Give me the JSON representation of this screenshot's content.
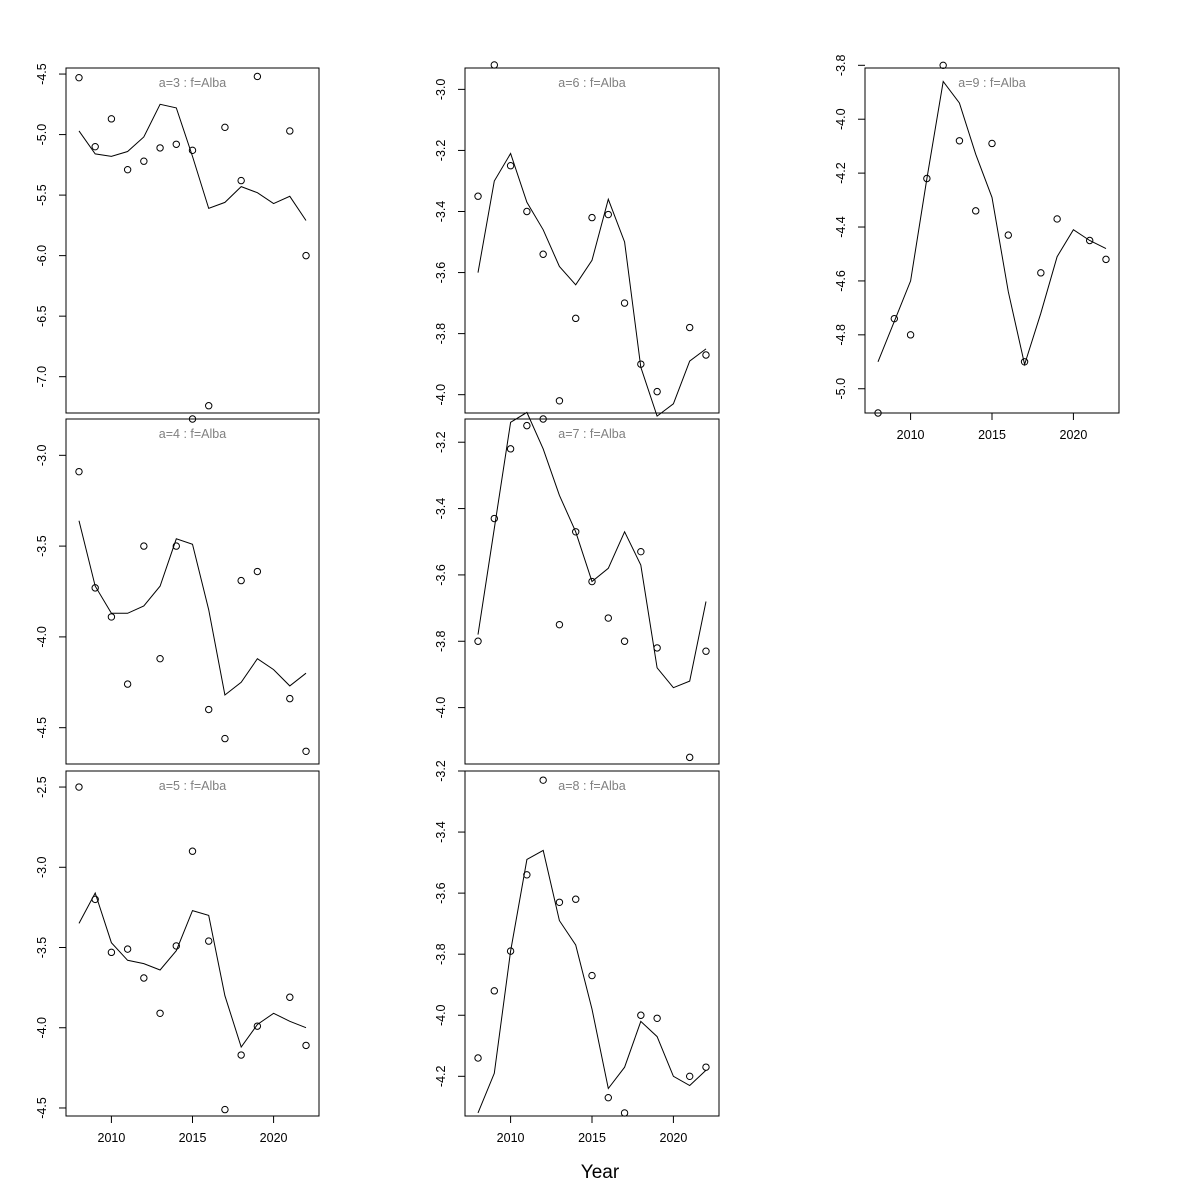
{
  "figure": {
    "xlabel": "Year"
  },
  "chart_data": [
    {
      "type": "scatter+line",
      "title": "a=3  :  f=Alba",
      "x_ticks": [],
      "y_ticks": [
        -4.5,
        -5.0,
        -5.5,
        -6.0,
        -6.5,
        -7.0
      ],
      "xlim": [
        2007.2,
        2022.8
      ],
      "ylim": [
        -7.3,
        -4.45
      ],
      "points": {
        "x": [
          2008,
          2009,
          2010,
          2011,
          2012,
          2013,
          2014,
          2015,
          2016,
          2017,
          2018,
          2019,
          2021,
          2022
        ],
        "y": [
          -4.53,
          -5.1,
          -4.87,
          -5.29,
          -5.22,
          -5.11,
          -5.08,
          -5.13,
          -7.24,
          -4.94,
          -5.38,
          -4.52,
          -4.97,
          -6.0
        ]
      },
      "line": {
        "x": [
          2008,
          2009,
          2010,
          2011,
          2012,
          2013,
          2014,
          2015,
          2016,
          2017,
          2018,
          2019,
          2020,
          2021,
          2022
        ],
        "y": [
          -4.97,
          -5.16,
          -5.18,
          -5.14,
          -5.02,
          -4.75,
          -4.78,
          -5.18,
          -5.61,
          -5.56,
          -5.43,
          -5.48,
          -5.57,
          -5.51,
          -5.71
        ]
      }
    },
    {
      "type": "scatter+line",
      "title": "a=4  :  f=Alba",
      "x_ticks": [],
      "y_ticks": [
        -3.0,
        -3.5,
        -4.0,
        -4.5
      ],
      "xlim": [
        2007.2,
        2022.8
      ],
      "ylim": [
        -4.7,
        -2.8
      ],
      "points": {
        "x": [
          2008,
          2009,
          2010,
          2011,
          2012,
          2013,
          2014,
          2015,
          2016,
          2017,
          2018,
          2019,
          2021,
          2022
        ],
        "y": [
          -3.09,
          -3.73,
          -3.89,
          -4.26,
          -3.5,
          -4.12,
          -3.5,
          -2.8,
          -4.4,
          -4.56,
          -3.69,
          -3.64,
          -4.34,
          -4.63
        ]
      },
      "line": {
        "x": [
          2008,
          2009,
          2010,
          2011,
          2012,
          2013,
          2014,
          2015,
          2016,
          2017,
          2018,
          2019,
          2020,
          2021,
          2022
        ],
        "y": [
          -3.36,
          -3.72,
          -3.87,
          -3.87,
          -3.83,
          -3.72,
          -3.46,
          -3.49,
          -3.85,
          -4.32,
          -4.25,
          -4.12,
          -4.18,
          -4.27,
          -4.2
        ]
      }
    },
    {
      "type": "scatter+line",
      "title": "a=5  :  f=Alba",
      "x_ticks": [
        2010,
        2015,
        2020
      ],
      "y_ticks": [
        -2.5,
        -3.0,
        -3.5,
        -4.0,
        -4.5
      ],
      "xlim": [
        2007.2,
        2022.8
      ],
      "ylim": [
        -4.55,
        -2.4
      ],
      "points": {
        "x": [
          2008,
          2009,
          2010,
          2011,
          2012,
          2013,
          2014,
          2015,
          2016,
          2017,
          2018,
          2019,
          2021,
          2022
        ],
        "y": [
          -2.5,
          -3.2,
          -3.53,
          -3.51,
          -3.69,
          -3.91,
          -3.49,
          -2.9,
          -3.46,
          -4.51,
          -4.17,
          -3.99,
          -3.81,
          -4.11
        ]
      },
      "line": {
        "x": [
          2008,
          2009,
          2010,
          2011,
          2012,
          2013,
          2014,
          2015,
          2016,
          2017,
          2018,
          2019,
          2020,
          2021,
          2022
        ],
        "y": [
          -3.35,
          -3.16,
          -3.47,
          -3.58,
          -3.6,
          -3.64,
          -3.52,
          -3.27,
          -3.3,
          -3.8,
          -4.12,
          -3.98,
          -3.91,
          -3.96,
          -4.0
        ]
      }
    },
    {
      "type": "scatter+line",
      "title": "a=6  :  f=Alba",
      "x_ticks": [],
      "y_ticks": [
        -3.0,
        -3.2,
        -3.4,
        -3.6,
        -3.8,
        -4.0
      ],
      "xlim": [
        2007.2,
        2022.8
      ],
      "ylim": [
        -4.06,
        -2.93
      ],
      "points": {
        "x": [
          2008,
          2009,
          2010,
          2011,
          2012,
          2013,
          2014,
          2015,
          2016,
          2017,
          2018,
          2019,
          2021,
          2022
        ],
        "y": [
          -3.35,
          -2.92,
          -3.25,
          -3.4,
          -3.54,
          -4.02,
          -3.75,
          -3.42,
          -3.41,
          -3.7,
          -3.9,
          -3.99,
          -3.78,
          -3.87
        ]
      },
      "line": {
        "x": [
          2008,
          2009,
          2010,
          2011,
          2012,
          2013,
          2014,
          2015,
          2016,
          2017,
          2018,
          2019,
          2020,
          2021,
          2022
        ],
        "y": [
          -3.6,
          -3.3,
          -3.21,
          -3.37,
          -3.46,
          -3.58,
          -3.64,
          -3.56,
          -3.36,
          -3.5,
          -3.91,
          -4.07,
          -4.03,
          -3.89,
          -3.85
        ]
      }
    },
    {
      "type": "scatter+line",
      "title": "a=7  :  f=Alba",
      "x_ticks": [],
      "y_ticks": [
        -3.2,
        -3.4,
        -3.6,
        -3.8,
        -4.0
      ],
      "xlim": [
        2007.2,
        2022.8
      ],
      "ylim": [
        -4.17,
        -3.13
      ],
      "points": {
        "x": [
          2008,
          2009,
          2010,
          2011,
          2012,
          2013,
          2014,
          2015,
          2016,
          2017,
          2018,
          2019,
          2021,
          2022
        ],
        "y": [
          -3.8,
          -3.43,
          -3.22,
          -3.15,
          -3.13,
          -3.75,
          -3.47,
          -3.62,
          -3.73,
          -3.8,
          -3.53,
          -3.82,
          -4.15,
          -3.83
        ]
      },
      "line": {
        "x": [
          2008,
          2009,
          2010,
          2011,
          2012,
          2013,
          2014,
          2015,
          2016,
          2017,
          2018,
          2019,
          2020,
          2021,
          2022
        ],
        "y": [
          -3.78,
          -3.46,
          -3.14,
          -3.11,
          -3.22,
          -3.36,
          -3.47,
          -3.62,
          -3.58,
          -3.47,
          -3.57,
          -3.88,
          -3.94,
          -3.92,
          -3.68
        ]
      }
    },
    {
      "type": "scatter+line",
      "title": "a=8  :  f=Alba",
      "x_ticks": [
        2010,
        2015,
        2020
      ],
      "y_ticks": [
        -3.2,
        -3.4,
        -3.6,
        -3.8,
        -4.0,
        -4.2
      ],
      "xlim": [
        2007.2,
        2022.8
      ],
      "ylim": [
        -4.33,
        -3.2
      ],
      "points": {
        "x": [
          2008,
          2009,
          2010,
          2011,
          2012,
          2013,
          2014,
          2015,
          2016,
          2017,
          2018,
          2019,
          2021,
          2022
        ],
        "y": [
          -4.14,
          -3.92,
          -3.79,
          -3.54,
          -3.23,
          -3.63,
          -3.62,
          -3.87,
          -4.27,
          -4.32,
          -4.0,
          -4.01,
          -4.2,
          -4.17
        ]
      },
      "line": {
        "x": [
          2008,
          2009,
          2010,
          2011,
          2012,
          2013,
          2014,
          2015,
          2016,
          2017,
          2018,
          2019,
          2020,
          2021,
          2022
        ],
        "y": [
          -4.32,
          -4.19,
          -3.79,
          -3.49,
          -3.46,
          -3.69,
          -3.77,
          -3.98,
          -4.24,
          -4.17,
          -4.02,
          -4.07,
          -4.2,
          -4.23,
          -4.18
        ]
      }
    },
    {
      "type": "scatter+line",
      "title": "a=9  :  f=Alba",
      "x_ticks": [
        2010,
        2015,
        2020
      ],
      "y_ticks": [
        -3.8,
        -4.0,
        -4.2,
        -4.4,
        -4.6,
        -4.8,
        -5.0
      ],
      "xlim": [
        2007.2,
        2022.8
      ],
      "ylim": [
        -5.09,
        -3.81
      ],
      "points": {
        "x": [
          2008,
          2009,
          2010,
          2011,
          2012,
          2013,
          2014,
          2015,
          2016,
          2017,
          2018,
          2019,
          2021,
          2022
        ],
        "y": [
          -5.09,
          -4.74,
          -4.8,
          -4.22,
          -3.8,
          -4.08,
          -4.34,
          -4.09,
          -4.43,
          -4.9,
          -4.57,
          -4.37,
          -4.45,
          -4.52
        ]
      },
      "line": {
        "x": [
          2008,
          2009,
          2010,
          2011,
          2012,
          2013,
          2014,
          2015,
          2016,
          2017,
          2018,
          2019,
          2020,
          2021,
          2022
        ],
        "y": [
          -4.9,
          -4.75,
          -4.6,
          -4.22,
          -3.86,
          -3.94,
          -4.13,
          -4.29,
          -4.64,
          -4.91,
          -4.72,
          -4.51,
          -4.41,
          -4.45,
          -4.48
        ]
      }
    }
  ]
}
